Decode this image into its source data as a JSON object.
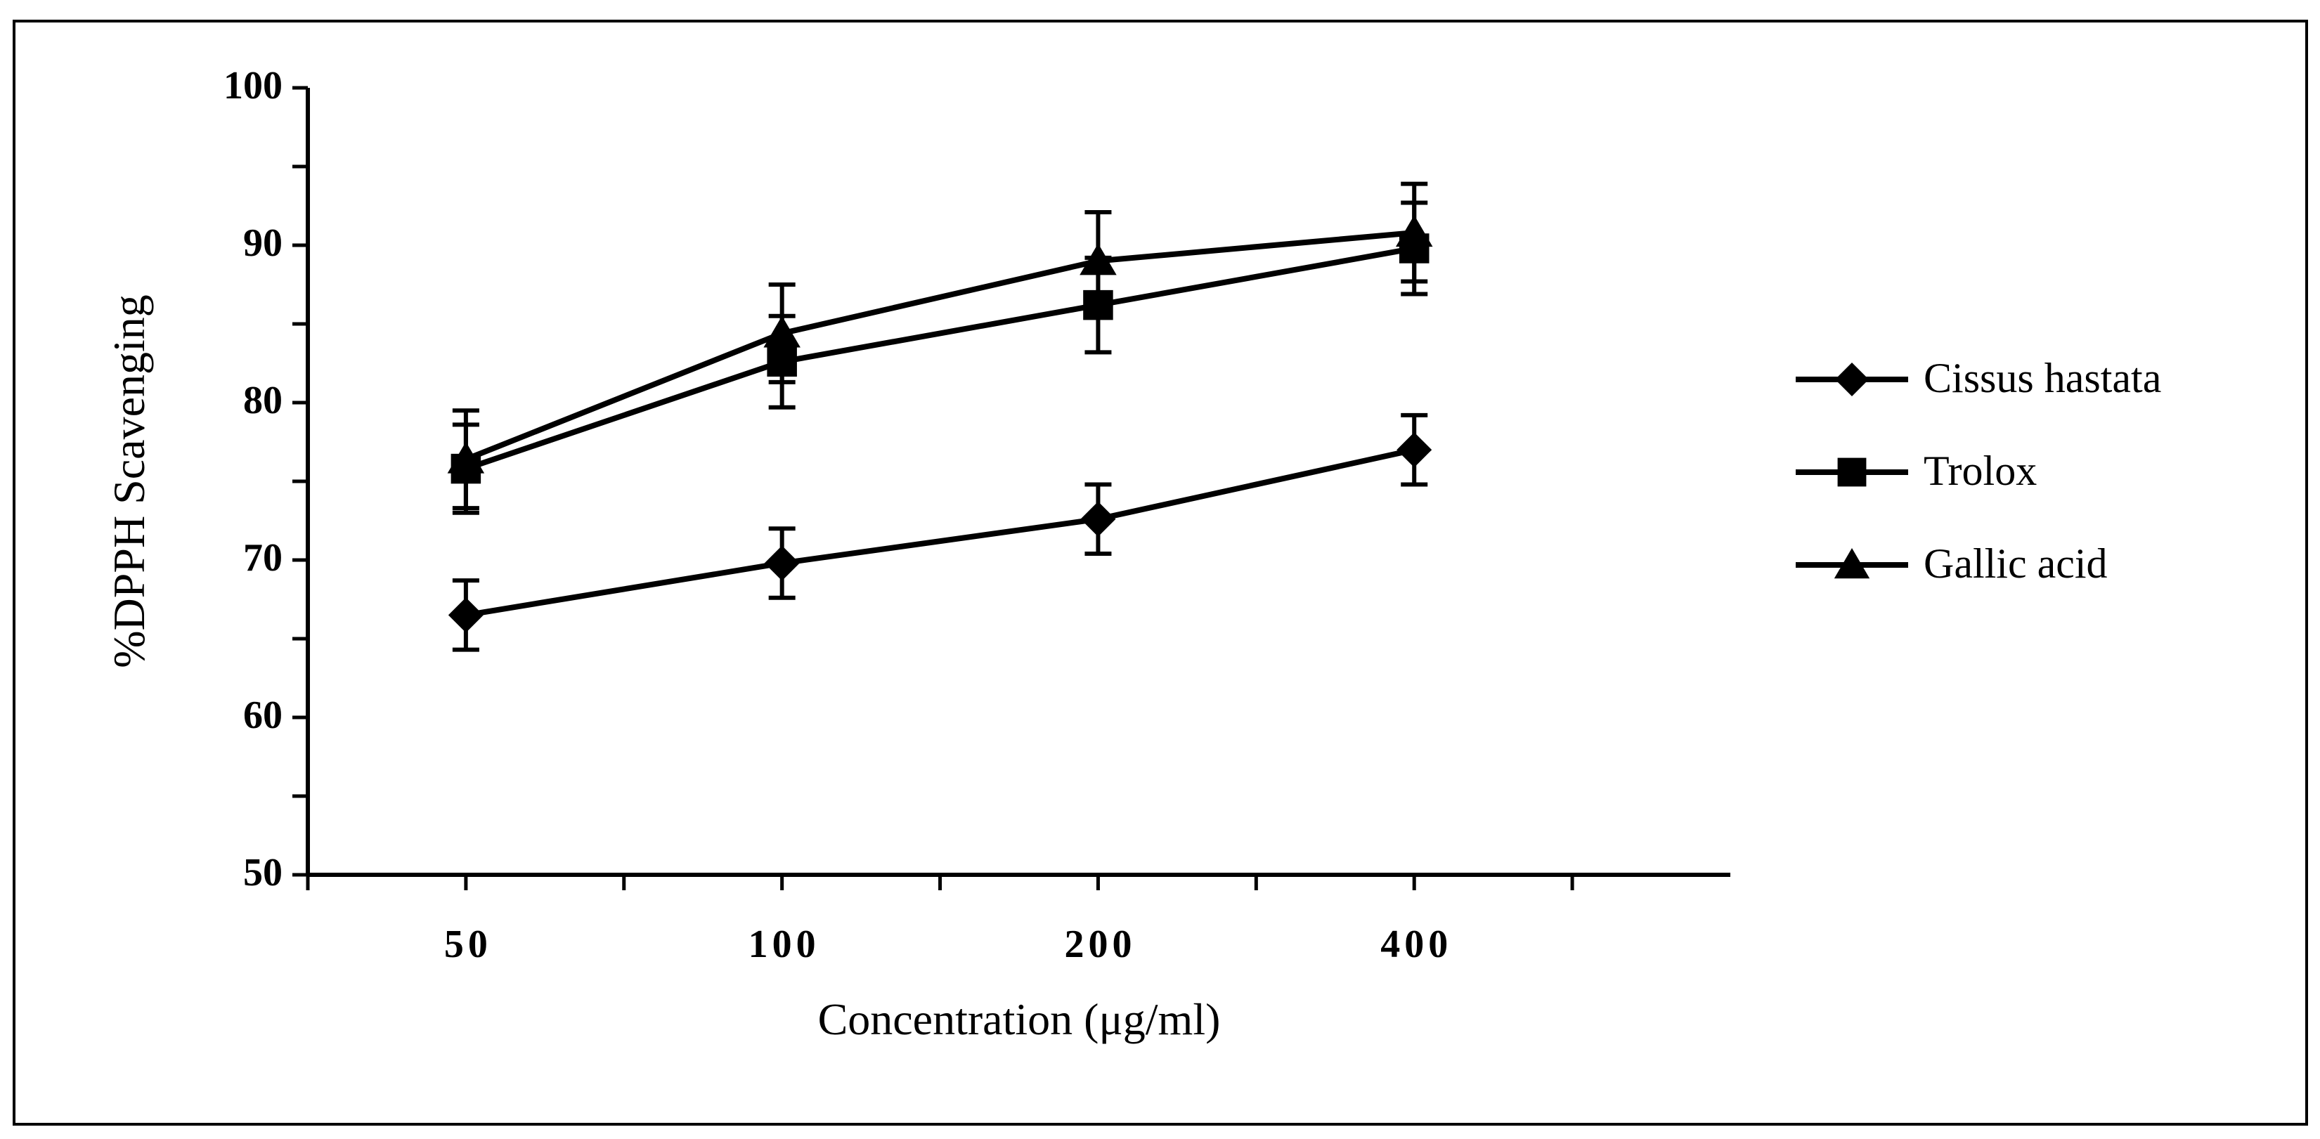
{
  "chart_data": {
    "type": "line",
    "title": "",
    "xlabel": "Concentration (μg/ml)",
    "ylabel": "%DPPH Scavenging",
    "categories": [
      "50",
      "100",
      "200",
      "400"
    ],
    "ylim": [
      50,
      100
    ],
    "y_major_ticks": [
      50,
      60,
      70,
      80,
      90,
      100
    ],
    "y_tick_labels": [
      "50",
      "60",
      "70",
      "80",
      "90",
      "100"
    ],
    "y_minor_step": 5,
    "grid": false,
    "legend_position": "right",
    "series": [
      {
        "name": "Cissus hastata",
        "marker": "diamond",
        "values": [
          66.5,
          69.8,
          72.6,
          77.0
        ],
        "errors": [
          2.2,
          2.2,
          2.2,
          2.2
        ]
      },
      {
        "name": "Trolox",
        "marker": "square",
        "values": [
          75.8,
          82.6,
          86.2,
          89.8
        ],
        "errors": [
          2.8,
          2.9,
          3.0,
          2.9
        ]
      },
      {
        "name": "Gallic acid",
        "marker": "triangle",
        "values": [
          76.4,
          84.4,
          89.0,
          90.8
        ],
        "errors": [
          3.1,
          3.1,
          3.1,
          3.1
        ]
      }
    ]
  }
}
